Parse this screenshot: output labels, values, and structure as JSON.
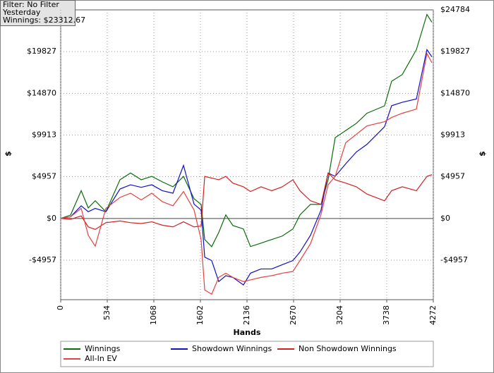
{
  "chart_data": {
    "type": "line",
    "annotations": [
      "Filter: No Filter",
      "Yesterday",
      "Winnings: $23312.67"
    ],
    "x_label": "Hands",
    "y_label": "$",
    "y2_label": "$",
    "x": [
      0,
      113,
      235,
      316,
      396,
      518,
      680,
      801,
      923,
      1044,
      1165,
      1287,
      1408,
      1529,
      1610,
      1651,
      1731,
      1812,
      1893,
      1974,
      2095,
      2176,
      2297,
      2419,
      2540,
      2662,
      2743,
      2864,
      2985,
      3066,
      3147,
      3268,
      3390,
      3511,
      3713,
      3794,
      3916,
      4078,
      4199,
      4256
    ],
    "xlim": [
      0,
      4272
    ],
    "xticks": [
      0,
      534,
      1068,
      1602,
      2136,
      2670,
      3204,
      3738,
      4272
    ],
    "ylim": [
      -9650,
      24784
    ],
    "yticks": [
      {
        "value": -4957,
        "label": "-$4957"
      },
      {
        "value": 0,
        "label": "$0"
      },
      {
        "value": 4957,
        "label": "$4957"
      },
      {
        "value": 9913,
        "label": "$9913"
      },
      {
        "value": 14870,
        "label": "$14870"
      },
      {
        "value": 19827,
        "label": "$19827"
      }
    ],
    "y2lim": [
      -9650,
      24784
    ],
    "y2ticks": [
      {
        "value": -4957,
        "label": "-$4957"
      },
      {
        "value": 0,
        "label": "$0"
      },
      {
        "value": 4957,
        "label": "$4957"
      },
      {
        "value": 9913,
        "label": "$9913"
      },
      {
        "value": 14870,
        "label": "$14870"
      },
      {
        "value": 19827,
        "label": "$19827"
      },
      {
        "value": 24784,
        "label": "$24784"
      }
    ],
    "grid": true,
    "series": [
      {
        "name": "Winnings",
        "color": "#0b6b0b",
        "values": [
          0,
          400,
          3300,
          1250,
          2100,
          800,
          4600,
          5400,
          4600,
          5000,
          4350,
          3760,
          5000,
          2340,
          1670,
          -2500,
          -3350,
          -1670,
          420,
          -840,
          -1250,
          -3340,
          -2930,
          -2500,
          -2090,
          -1250,
          420,
          1670,
          1670,
          4600,
          9600,
          10450,
          11300,
          12500,
          13380,
          16300,
          17100,
          20060,
          24240,
          23313
        ]
      },
      {
        "name": "Showdown Winnings",
        "color": "#1010c8",
        "values": [
          0,
          200,
          1500,
          800,
          1200,
          800,
          3500,
          4000,
          3700,
          4000,
          3300,
          3000,
          6300,
          1700,
          1000,
          -4600,
          -5000,
          -7500,
          -6800,
          -7000,
          -7900,
          -6500,
          -6000,
          -6000,
          -5500,
          -5000,
          -4000,
          -2000,
          1000,
          5400,
          5000,
          6500,
          7900,
          8800,
          10900,
          13400,
          13800,
          14200,
          20060,
          19200
        ]
      },
      {
        "name": "Non Showdown Winnings",
        "color": "#d42020",
        "values": [
          0,
          -100,
          300,
          -1000,
          -1300,
          -500,
          -300,
          -500,
          -600,
          -400,
          -800,
          -1000,
          -400,
          -1000,
          -900,
          5000,
          4800,
          4600,
          5000,
          4200,
          3760,
          3200,
          3760,
          3300,
          3760,
          4600,
          3300,
          2100,
          1670,
          5400,
          4600,
          4200,
          3760,
          2900,
          2100,
          3300,
          3760,
          3300,
          5000,
          5200
        ]
      },
      {
        "name": "All-In EV",
        "color": "#e84040",
        "values": [
          0,
          200,
          1200,
          -2000,
          -3300,
          1200,
          2500,
          3000,
          2200,
          3000,
          2000,
          1500,
          3200,
          1000,
          -2500,
          -8500,
          -9000,
          -7000,
          -6500,
          -7000,
          -7500,
          -7300,
          -7000,
          -6800,
          -6500,
          -6300,
          -5000,
          -3000,
          500,
          4000,
          5000,
          9000,
          10000,
          11000,
          11500,
          12000,
          12500,
          13000,
          19600,
          18500
        ]
      }
    ]
  }
}
